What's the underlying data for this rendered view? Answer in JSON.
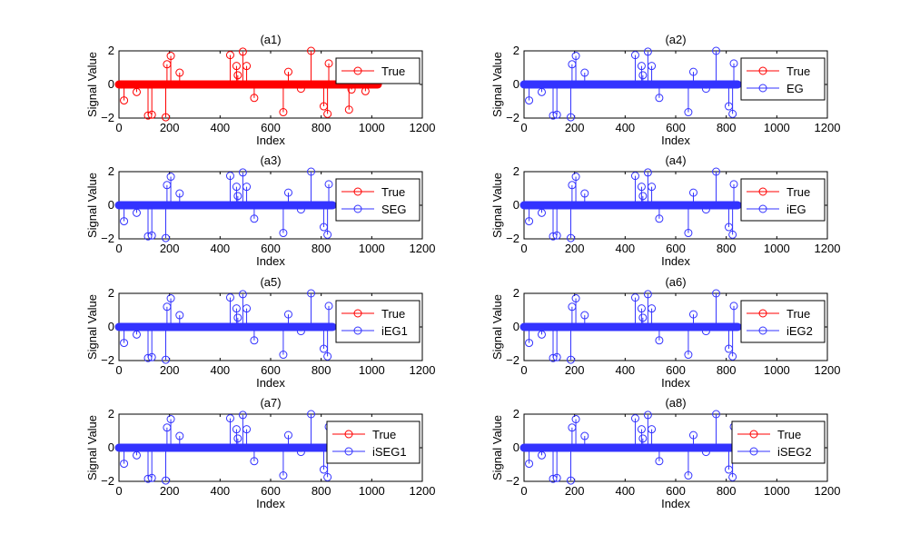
{
  "chart_data": {
    "type": "stem",
    "xlim": [
      0,
      1200
    ],
    "ylim": [
      -2,
      2
    ],
    "xticks": [
      0,
      200,
      400,
      600,
      800,
      1000,
      1200
    ],
    "yticks": [
      -2,
      0,
      2
    ],
    "xticklabels": [
      "0",
      "200",
      "400",
      "600",
      "800",
      "1000",
      "1200"
    ],
    "yticklabels": [
      "−2",
      "0",
      "2"
    ],
    "xlabel": "Index",
    "ylabel": "Signal Value",
    "signal_length": 1024,
    "true_nonzeros": [
      {
        "x": 20,
        "y": -0.95
      },
      {
        "x": 70,
        "y": -0.45
      },
      {
        "x": 115,
        "y": -1.85
      },
      {
        "x": 130,
        "y": -1.8
      },
      {
        "x": 185,
        "y": -1.95
      },
      {
        "x": 190,
        "y": 1.2
      },
      {
        "x": 205,
        "y": 1.7
      },
      {
        "x": 240,
        "y": 0.7
      },
      {
        "x": 440,
        "y": 1.75
      },
      {
        "x": 465,
        "y": 1.1
      },
      {
        "x": 470,
        "y": 0.55
      },
      {
        "x": 490,
        "y": 1.95
      },
      {
        "x": 505,
        "y": 1.1
      },
      {
        "x": 535,
        "y": -0.8
      },
      {
        "x": 650,
        "y": -1.65
      },
      {
        "x": 670,
        "y": 0.75
      },
      {
        "x": 720,
        "y": -0.25
      },
      {
        "x": 760,
        "y": 2.0
      },
      {
        "x": 810,
        "y": -1.3
      },
      {
        "x": 825,
        "y": -1.75
      },
      {
        "x": 830,
        "y": 1.25
      },
      {
        "x": 910,
        "y": -1.5
      },
      {
        "x": 920,
        "y": -0.3
      },
      {
        "x": 975,
        "y": -0.4
      }
    ],
    "colors": {
      "true": "#ff0000",
      "estimate": "#3333ff"
    },
    "estimate_visible_until": 845,
    "subplots": [
      {
        "title": "(a1)",
        "legend": [
          "True"
        ]
      },
      {
        "title": "(a2)",
        "legend": [
          "True",
          "EG"
        ]
      },
      {
        "title": "(a3)",
        "legend": [
          "True",
          "SEG"
        ]
      },
      {
        "title": "(a4)",
        "legend": [
          "True",
          "iEG"
        ]
      },
      {
        "title": "(a5)",
        "legend": [
          "True",
          "iEG1"
        ]
      },
      {
        "title": "(a6)",
        "legend": [
          "True",
          "iEG2"
        ]
      },
      {
        "title": "(a7)",
        "legend": [
          "True",
          "iSEG1"
        ]
      },
      {
        "title": "(a8)",
        "legend": [
          "True",
          "iSEG2"
        ]
      }
    ]
  }
}
